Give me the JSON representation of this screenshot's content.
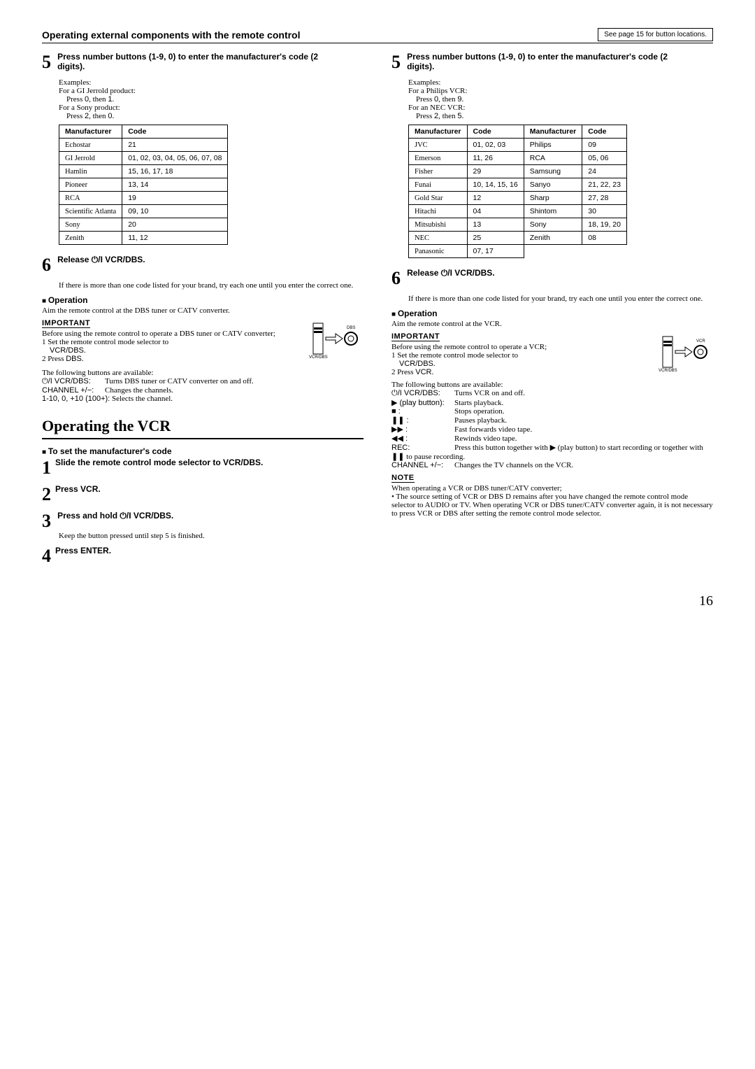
{
  "header": {
    "title": "Operating external components with the remote control",
    "note": "See page 15 for button locations."
  },
  "left": {
    "step5": {
      "num": "5",
      "text": "Press number buttons (1-9, 0) to enter the manufacturer's code (2 digits).",
      "examples_title": "Examples:",
      "ex1a": "For a GI Jerrold product:",
      "ex1b": "Press ",
      "ex1b_k1": "0",
      "ex1b_mid": ", then ",
      "ex1b_k2": "1",
      "ex1b_end": ".",
      "ex2a": "For a Sony product:",
      "ex2b": "Press ",
      "ex2b_k1": "2",
      "ex2b_mid": ", then ",
      "ex2b_k2": "0",
      "ex2b_end": "."
    },
    "table1": {
      "h1": "Manufacturer",
      "h2": "Code",
      "rows": [
        [
          "Echostar",
          "21"
        ],
        [
          "GI Jerrold",
          "01, 02, 03, 04, 05, 06, 07, 08"
        ],
        [
          "Hamlin",
          "15, 16, 17, 18"
        ],
        [
          "Pioneer",
          "13, 14"
        ],
        [
          "RCA",
          "19"
        ],
        [
          "Scientific Atlanta",
          "09, 10"
        ],
        [
          "Sony",
          "20"
        ],
        [
          "Zenith",
          "11, 12"
        ]
      ]
    },
    "step6": {
      "num": "6",
      "text_pre": "Release ",
      "text_icon": "⏻/I",
      "text_post": " VCR/DBS.",
      "sub": "If there is more than one code listed for your brand, try each one until you enter the correct one."
    },
    "operation": {
      "title": "Operation",
      "aim": "Aim the remote control at the DBS tuner or CATV converter.",
      "important": "IMPORTANT",
      "before": "Before using the remote control to operate a DBS tuner or CATV converter;",
      "s1_pre": "1   Set the remote control mode selector to ",
      "s1_key": "VCR/DBS",
      "s1_post": ".",
      "s2_pre": "2   Press ",
      "s2_key": "DBS",
      "s2_post": ".",
      "following": "The following buttons are available:",
      "b1_sym": "⏻/I VCR/DBS:",
      "b1_txt": "Turns DBS tuner or CATV converter on and off.",
      "b2_sym": "CHANNEL +/−:",
      "b2_txt": "Changes the channels.",
      "b3_sym": "1-10, 0, +10 (100+):",
      "b3_txt": "Selects the channel."
    },
    "box": {
      "title": "Operating the VCR",
      "setcode": "To set the manufacturer's code",
      "s1_num": "1",
      "s1_txt": "Slide the remote control mode selector to VCR/DBS.",
      "s2_num": "2",
      "s2_txt": "Press VCR.",
      "s3_num": "3",
      "s3_pre": "Press and hold ",
      "s3_icon": "⏻/I",
      "s3_post": " VCR/DBS.",
      "s3_sub": "Keep the button pressed until step 5 is finished.",
      "s4_num": "4",
      "s4_txt": "Press ENTER."
    },
    "selector": {
      "label_top": "DBS",
      "label_bottom": "VCR/DBS"
    }
  },
  "right": {
    "step5": {
      "num": "5",
      "text": "Press number buttons (1-9, 0) to enter the manufacturer's code (2 digits).",
      "examples_title": "Examples:",
      "ex1a": "For a Philips VCR:",
      "ex1b": "Press ",
      "ex1b_k1": "0",
      "ex1b_mid": ", then ",
      "ex1b_k2": "9",
      "ex1b_end": ".",
      "ex2a": "For an NEC VCR:",
      "ex2b": "Press ",
      "ex2b_k1": "2",
      "ex2b_mid": ", then ",
      "ex2b_k2": "5",
      "ex2b_end": "."
    },
    "table2": {
      "h1": "Manufacturer",
      "h2": "Code",
      "h3": "Manufacturer",
      "h4": "Code",
      "rows": [
        [
          "JVC",
          "01, 02, 03",
          "Philips",
          "09"
        ],
        [
          "Emerson",
          "11, 26",
          "RCA",
          "05, 06"
        ],
        [
          "Fisher",
          "29",
          "Samsung",
          "24"
        ],
        [
          "Funai",
          "10, 14, 15, 16",
          "Sanyo",
          "21, 22, 23"
        ],
        [
          "Gold Star",
          "12",
          "Sharp",
          "27, 28"
        ],
        [
          "Hitachi",
          "04",
          "Shintom",
          "30"
        ],
        [
          "Mitsubishi",
          "13",
          "Sony",
          "18, 19, 20"
        ],
        [
          "NEC",
          "25",
          "Zenith",
          "08"
        ],
        [
          "Panasonic",
          "07, 17",
          "",
          ""
        ]
      ]
    },
    "step6": {
      "num": "6",
      "text_pre": "Release ",
      "text_icon": "⏻/I",
      "text_post": " VCR/DBS.",
      "sub": "If there is more than one code listed for your brand, try each one until you enter the correct one."
    },
    "operation": {
      "title": "Operation",
      "aim": "Aim the remote control at the VCR.",
      "important": "IMPORTANT",
      "before": "Before using the remote control to operate a VCR;",
      "s1_pre": "1   Set the remote control mode selector to ",
      "s1_key": "VCR/DBS",
      "s1_post": ".",
      "s2_pre": "2   Press ",
      "s2_key": "VCR",
      "s2_post": ".",
      "following": "The following buttons are available:",
      "lines": [
        {
          "sym": "⏻/I VCR/DBS:",
          "txt": "Turns VCR on and off."
        },
        {
          "sym": "▶ (play button):",
          "txt": "Starts playback."
        },
        {
          "sym": "■ :",
          "txt": "Stops operation."
        },
        {
          "sym": "❚❚ :",
          "txt": "Pauses playback."
        },
        {
          "sym": "▶▶ :",
          "txt": "Fast forwards video tape."
        },
        {
          "sym": "◀◀ :",
          "txt": "Rewinds video tape."
        },
        {
          "sym": "REC:",
          "txt": "Press this button together with ▶ (play button) to start recording or together with ❚❚ to pause recording."
        },
        {
          "sym": "CHANNEL +/−:",
          "txt": "Changes the TV channels on the VCR."
        }
      ],
      "note": "NOTE",
      "note_txt1": "When operating a VCR or DBS tuner/CATV converter;",
      "note_txt2": "The source setting of VCR or DBS D remains after you have changed the remote control mode selector to AUDIO or TV. When operating VCR or DBS tuner/CATV converter again, it is not necessary to press VCR or DBS after setting the remote control mode selector."
    },
    "selector": {
      "label_top": "VCR",
      "label_bottom": "VCR/DBS"
    }
  },
  "page": "16"
}
